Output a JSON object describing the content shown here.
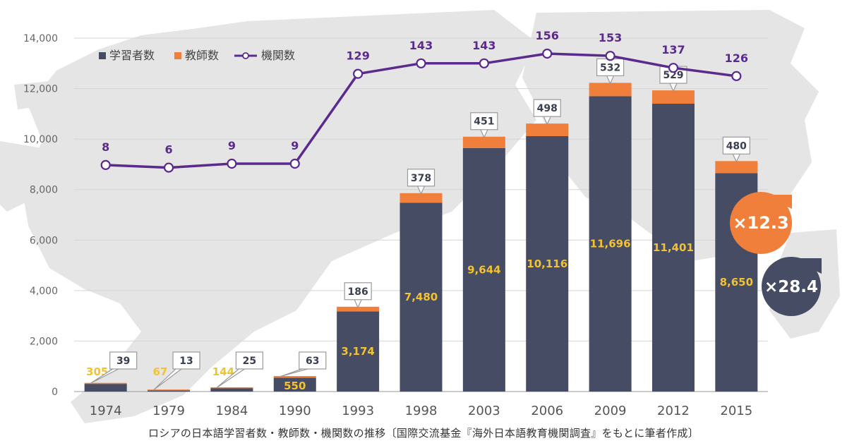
{
  "chart_data": {
    "type": "bar",
    "stacked": true,
    "categories": [
      "1974",
      "1979",
      "1984",
      "1990",
      "1993",
      "1998",
      "2003",
      "2006",
      "2009",
      "2012",
      "2015"
    ],
    "y_ticks": [
      "0",
      "2,000",
      "4,000",
      "6,000",
      "8,000",
      "10,000",
      "12,000",
      "14,000"
    ],
    "ylim": [
      0,
      14000
    ],
    "grid": true,
    "legend_position": "top-left",
    "series": [
      {
        "name": "学習者数",
        "color": "#454c64",
        "values": [
          305,
          67,
          144,
          550,
          3174,
          7480,
          9644,
          10116,
          11696,
          11401,
          8650
        ],
        "labels": [
          "305",
          "67",
          "144",
          "550",
          "3,174",
          "7,480",
          "9,644",
          "10,116",
          "11,696",
          "11,401",
          "8,650"
        ]
      },
      {
        "name": "教師数",
        "color": "#ef7f3a",
        "values": [
          39,
          13,
          25,
          63,
          186,
          378,
          451,
          498,
          532,
          529,
          480
        ],
        "labels": [
          "39",
          "13",
          "25",
          "63",
          "186",
          "378",
          "451",
          "498",
          "532",
          "529",
          "480"
        ]
      },
      {
        "name": "機関数",
        "type": "line",
        "color": "#5b2a8e",
        "values": [
          8,
          6,
          9,
          9,
          129,
          143,
          143,
          156,
          153,
          137,
          126
        ],
        "labels": [
          "8",
          "6",
          "9",
          "9",
          "129",
          "143",
          "143",
          "156",
          "153",
          "137",
          "126"
        ]
      }
    ],
    "annotations": [
      {
        "text": "×12.3",
        "color": "#ef7f3a"
      },
      {
        "text": "×28.4",
        "color": "#454c64"
      }
    ],
    "caption": "ロシアの日本語学習者数・教師数・機関数の推移〔国際交流基金『海外日本語教育機関調査』をもとに筆者作成〕"
  }
}
